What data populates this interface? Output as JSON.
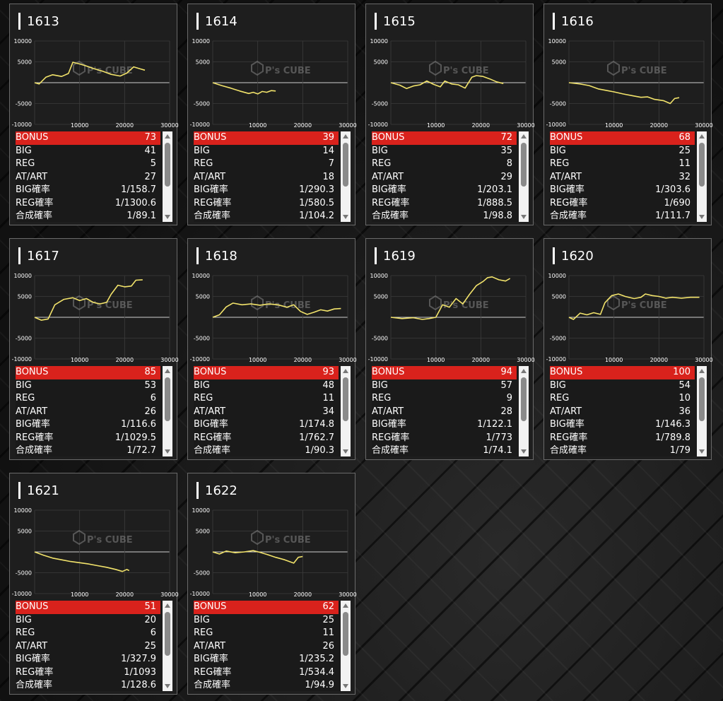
{
  "axis": {
    "y_ticks": [
      "10000",
      "5000",
      "-5000",
      "-10000"
    ],
    "x_ticks": [
      "10000",
      "20000",
      "30000"
    ]
  },
  "watermark": {
    "brand": "P's CUBE",
    "icon": "cube-logo-icon"
  },
  "stat_labels": [
    "BONUS",
    "BIG",
    "REG",
    "AT/ART",
    "BIG確率",
    "REG確率",
    "合成確率"
  ],
  "colors": {
    "line": "#f2e36b",
    "bonus_row": "#d9221c"
  },
  "machines": [
    {
      "id": "1613",
      "stats": [
        "73",
        "41",
        "5",
        "27",
        "1/158.7",
        "1/1300.6",
        "1/89.1"
      ],
      "line": [
        [
          0,
          0
        ],
        [
          1000,
          -300
        ],
        [
          2500,
          1300
        ],
        [
          4000,
          1900
        ],
        [
          6000,
          1500
        ],
        [
          7500,
          2200
        ],
        [
          8500,
          4900
        ],
        [
          10000,
          4500
        ],
        [
          11500,
          4000
        ],
        [
          13000,
          3400
        ],
        [
          15000,
          2800
        ],
        [
          17000,
          2000
        ],
        [
          19000,
          1600
        ],
        [
          20500,
          2300
        ],
        [
          22000,
          3800
        ],
        [
          23500,
          3300
        ],
        [
          24500,
          3000
        ]
      ]
    },
    {
      "id": "1614",
      "stats": [
        "39",
        "14",
        "7",
        "18",
        "1/290.3",
        "1/580.5",
        "1/104.2"
      ],
      "line": [
        [
          0,
          0
        ],
        [
          2000,
          -700
        ],
        [
          4000,
          -1300
        ],
        [
          6000,
          -2000
        ],
        [
          8000,
          -2600
        ],
        [
          9000,
          -2300
        ],
        [
          10000,
          -2700
        ],
        [
          11000,
          -2100
        ],
        [
          12000,
          -2300
        ],
        [
          13000,
          -1900
        ],
        [
          14000,
          -2000
        ]
      ]
    },
    {
      "id": "1615",
      "stats": [
        "72",
        "35",
        "8",
        "29",
        "1/203.1",
        "1/888.5",
        "1/98.8"
      ],
      "line": [
        [
          0,
          0
        ],
        [
          2000,
          -600
        ],
        [
          3500,
          -1400
        ],
        [
          5000,
          -800
        ],
        [
          6500,
          -500
        ],
        [
          8000,
          400
        ],
        [
          9500,
          -400
        ],
        [
          11000,
          -1000
        ],
        [
          12000,
          400
        ],
        [
          13500,
          -300
        ],
        [
          15000,
          -500
        ],
        [
          16500,
          -1300
        ],
        [
          18000,
          1300
        ],
        [
          19000,
          1700
        ],
        [
          20500,
          1500
        ],
        [
          22000,
          900
        ],
        [
          23500,
          200
        ],
        [
          25000,
          -200
        ]
      ]
    },
    {
      "id": "1616",
      "stats": [
        "68",
        "25",
        "11",
        "32",
        "1/303.6",
        "1/690",
        "1/111.7"
      ],
      "line": [
        [
          0,
          0
        ],
        [
          2500,
          -300
        ],
        [
          4500,
          -700
        ],
        [
          6500,
          -1500
        ],
        [
          8500,
          -1900
        ],
        [
          10000,
          -2200
        ],
        [
          12000,
          -2700
        ],
        [
          14000,
          -3100
        ],
        [
          16000,
          -3500
        ],
        [
          17500,
          -3400
        ],
        [
          19000,
          -4000
        ],
        [
          21000,
          -4300
        ],
        [
          22500,
          -5000
        ],
        [
          23500,
          -3800
        ],
        [
          24500,
          -3600
        ]
      ]
    },
    {
      "id": "1617",
      "stats": [
        "85",
        "53",
        "6",
        "26",
        "1/116.6",
        "1/1029.5",
        "1/72.7"
      ],
      "line": [
        [
          0,
          0
        ],
        [
          1500,
          -700
        ],
        [
          3000,
          -400
        ],
        [
          4500,
          3000
        ],
        [
          6500,
          4300
        ],
        [
          8500,
          4700
        ],
        [
          10000,
          4000
        ],
        [
          11500,
          4500
        ],
        [
          13000,
          3600
        ],
        [
          14500,
          3200
        ],
        [
          16000,
          3600
        ],
        [
          17000,
          5500
        ],
        [
          18500,
          7700
        ],
        [
          20000,
          7300
        ],
        [
          21500,
          7500
        ],
        [
          22500,
          8900
        ],
        [
          24000,
          9000
        ]
      ]
    },
    {
      "id": "1618",
      "stats": [
        "93",
        "48",
        "11",
        "34",
        "1/174.8",
        "1/762.7",
        "1/90.3"
      ],
      "line": [
        [
          0,
          0
        ],
        [
          1500,
          600
        ],
        [
          3000,
          2500
        ],
        [
          4500,
          3400
        ],
        [
          6500,
          3000
        ],
        [
          8500,
          3200
        ],
        [
          10500,
          2900
        ],
        [
          12500,
          3200
        ],
        [
          14500,
          3000
        ],
        [
          16500,
          2400
        ],
        [
          18000,
          3000
        ],
        [
          19500,
          1400
        ],
        [
          21000,
          700
        ],
        [
          22500,
          1200
        ],
        [
          24000,
          1800
        ],
        [
          25500,
          1500
        ],
        [
          27000,
          2000
        ],
        [
          28500,
          2100
        ]
      ]
    },
    {
      "id": "1619",
      "stats": [
        "94",
        "57",
        "9",
        "28",
        "1/122.1",
        "1/773",
        "1/74.1"
      ],
      "line": [
        [
          0,
          0
        ],
        [
          2500,
          -300
        ],
        [
          5000,
          -100
        ],
        [
          7000,
          -500
        ],
        [
          8500,
          -300
        ],
        [
          10000,
          0
        ],
        [
          11500,
          3000
        ],
        [
          13000,
          2400
        ],
        [
          14500,
          4500
        ],
        [
          16000,
          3200
        ],
        [
          17500,
          5500
        ],
        [
          19000,
          7600
        ],
        [
          20500,
          8600
        ],
        [
          21500,
          9500
        ],
        [
          22500,
          9700
        ],
        [
          24000,
          9000
        ],
        [
          25500,
          8700
        ],
        [
          26500,
          9300
        ]
      ]
    },
    {
      "id": "1620",
      "stats": [
        "100",
        "54",
        "10",
        "36",
        "1/146.3",
        "1/789.8",
        "1/79"
      ],
      "line": [
        [
          0,
          0
        ],
        [
          1000,
          -500
        ],
        [
          2500,
          1000
        ],
        [
          4000,
          600
        ],
        [
          5500,
          1100
        ],
        [
          7000,
          700
        ],
        [
          8000,
          3500
        ],
        [
          9500,
          5200
        ],
        [
          11000,
          5600
        ],
        [
          12500,
          5000
        ],
        [
          14500,
          4500
        ],
        [
          16000,
          4800
        ],
        [
          17000,
          5600
        ],
        [
          18500,
          5200
        ],
        [
          20000,
          5000
        ],
        [
          21500,
          4600
        ],
        [
          23000,
          4800
        ],
        [
          25000,
          4600
        ],
        [
          27000,
          4800
        ],
        [
          29000,
          4800
        ]
      ]
    },
    {
      "id": "1621",
      "stats": [
        "51",
        "20",
        "6",
        "25",
        "1/327.9",
        "1/1093",
        "1/128.6"
      ],
      "line": [
        [
          0,
          0
        ],
        [
          2000,
          -800
        ],
        [
          4000,
          -1500
        ],
        [
          6000,
          -1900
        ],
        [
          8000,
          -2300
        ],
        [
          10000,
          -2600
        ],
        [
          12000,
          -2900
        ],
        [
          14000,
          -3300
        ],
        [
          16000,
          -3700
        ],
        [
          18000,
          -4200
        ],
        [
          19500,
          -4700
        ],
        [
          20500,
          -4200
        ],
        [
          21000,
          -4500
        ]
      ]
    },
    {
      "id": "1622",
      "stats": [
        "62",
        "25",
        "11",
        "26",
        "1/235.2",
        "1/534.4",
        "1/94.9"
      ],
      "line": [
        [
          0,
          0
        ],
        [
          1500,
          -500
        ],
        [
          3000,
          200
        ],
        [
          5000,
          -200
        ],
        [
          7000,
          0
        ],
        [
          9000,
          300
        ],
        [
          10500,
          -100
        ],
        [
          12000,
          -600
        ],
        [
          14000,
          -1300
        ],
        [
          16000,
          -1900
        ],
        [
          18000,
          -2700
        ],
        [
          19000,
          -1300
        ],
        [
          20000,
          -1100
        ]
      ]
    }
  ]
}
